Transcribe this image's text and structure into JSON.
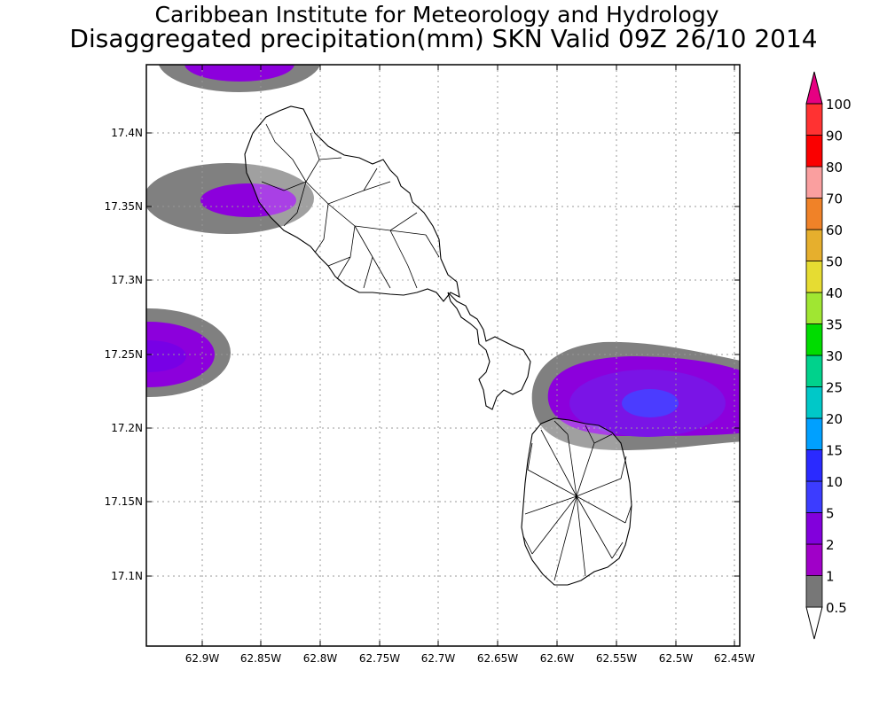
{
  "title": {
    "line1": "Caribbean Institute for Meteorology and Hydrology",
    "line2": "Disaggregated precipitation(mm) SKN Valid 09Z 26/10 2014"
  },
  "axes": {
    "lat_ticks": [
      "17.4N",
      "17.35N",
      "17.3N",
      "17.25N",
      "17.2N",
      "17.15N",
      "17.1N"
    ],
    "lon_ticks": [
      "62.9W",
      "62.85W",
      "62.8W",
      "62.75W",
      "62.7W",
      "62.65W",
      "62.6W",
      "62.55W",
      "62.5W",
      "62.45W"
    ]
  },
  "colorbar": {
    "levels": [
      {
        "label": "0.5",
        "color": "#777777"
      },
      {
        "label": "1",
        "color": "#a000c8"
      },
      {
        "label": "2",
        "color": "#8200dc"
      },
      {
        "label": "5",
        "color": "#3c3cff"
      },
      {
        "label": "10",
        "color": "#2a2aff"
      },
      {
        "label": "15",
        "color": "#00a0ff"
      },
      {
        "label": "20",
        "color": "#00c8c8"
      },
      {
        "label": "25",
        "color": "#00d28c"
      },
      {
        "label": "30",
        "color": "#00dc00"
      },
      {
        "label": "35",
        "color": "#a0e632"
      },
      {
        "label": "40",
        "color": "#e6dc32"
      },
      {
        "label": "50",
        "color": "#e6af2d"
      },
      {
        "label": "60",
        "color": "#f08228"
      },
      {
        "label": "70",
        "color": "#fa9f9f"
      },
      {
        "label": "80",
        "color": "#fa0000"
      },
      {
        "label": "90",
        "color": "#ff3232"
      },
      {
        "label": "100",
        "color": "#e60082"
      }
    ]
  },
  "colors": {
    "gray": "#808080",
    "purple_light": "#a000c8",
    "purple": "#8c00dc",
    "blue": "#4b3cff"
  }
}
